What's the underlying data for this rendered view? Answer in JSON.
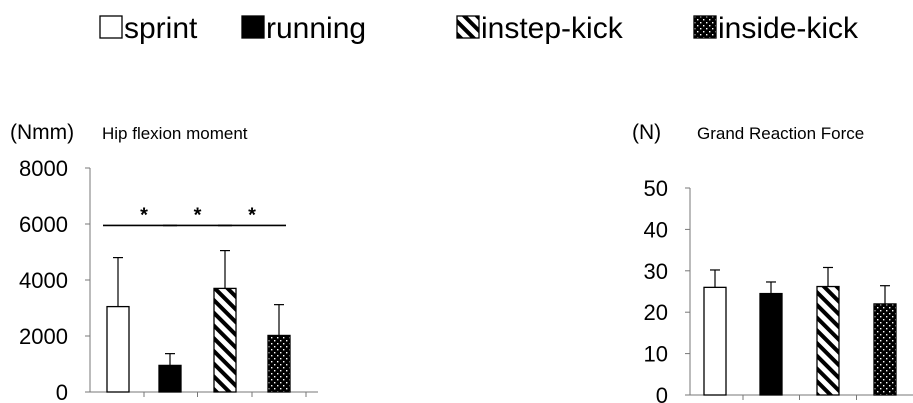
{
  "legend": [
    {
      "label": "sprint",
      "pattern": "open"
    },
    {
      "label": "running",
      "pattern": "solid"
    },
    {
      "label": "instep-kick",
      "pattern": "hatch"
    },
    {
      "label": "inside-kick",
      "pattern": "dots"
    }
  ],
  "chart_data": [
    {
      "type": "bar",
      "title": "Hip flexion moment",
      "unit": "(Nmm)",
      "categories": [
        "sprint",
        "running",
        "instep-kick",
        "inside-kick"
      ],
      "values": [
        3050,
        950,
        3700,
        2020
      ],
      "errors": [
        1750,
        420,
        1350,
        1100
      ],
      "ylim": [
        0,
        8000
      ],
      "yticks": [
        0,
        2000,
        4000,
        6000,
        8000
      ],
      "significance": [
        {
          "between": [
            0,
            1
          ],
          "label": "*",
          "y": 5950
        },
        {
          "between": [
            1,
            2
          ],
          "label": "*",
          "y": 5950
        },
        {
          "between": [
            2,
            3
          ],
          "label": "*",
          "y": 5950
        }
      ],
      "legend_placement": "top",
      "grid": false
    },
    {
      "type": "bar",
      "title": "Grand Reaction Force",
      "unit": "(N)",
      "categories": [
        "sprint",
        "running",
        "instep-kick",
        "inside-kick"
      ],
      "values": [
        26,
        24.5,
        26.2,
        22
      ],
      "errors": [
        4.2,
        2.8,
        4.6,
        4.4
      ],
      "ylim": [
        0,
        50
      ],
      "yticks": [
        0,
        10,
        20,
        30,
        40,
        50
      ],
      "legend_placement": "top",
      "grid": false
    }
  ]
}
